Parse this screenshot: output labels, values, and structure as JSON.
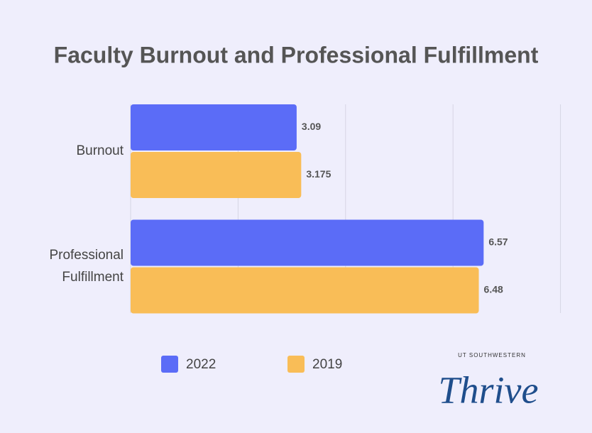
{
  "chart_data": {
    "type": "barh",
    "title": "Faculty Burnout and Professional Fulfillment",
    "categories": [
      "Burnout",
      "Professional Fulfillment"
    ],
    "series": [
      {
        "name": "2022",
        "color": "#5b6cf7",
        "values": [
          3.09,
          6.57
        ]
      },
      {
        "name": "2019",
        "color": "#f9bd57",
        "values": [
          3.175,
          6.48
        ]
      }
    ],
    "xlim": [
      0,
      8
    ],
    "xticks": [
      2,
      4,
      6,
      8
    ],
    "grid": true,
    "legend": "bottom"
  },
  "logo": {
    "subtitle": "UT SOUTHWESTERN",
    "name": "Thrive"
  }
}
